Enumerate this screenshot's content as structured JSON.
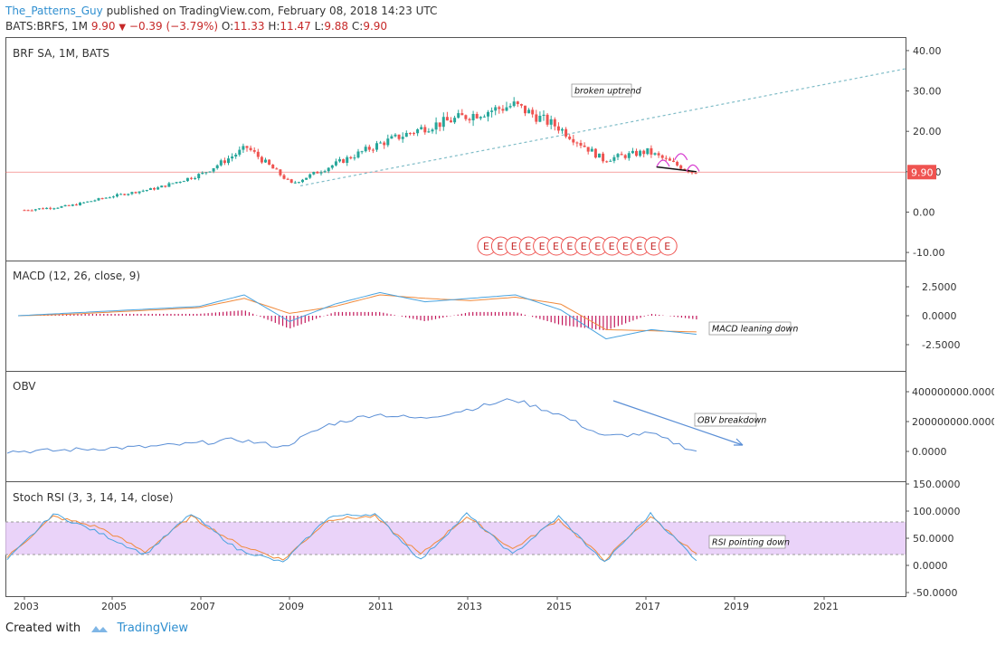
{
  "header": {
    "author": "The_Patterns_Guy",
    "published_text": "published on TradingView.com, February 08, 2018 14:23 UTC"
  },
  "ticker": {
    "symbol": "BATS:BRFS, 1M",
    "price": "9.90",
    "change": "−0.39 (−3.79%)",
    "o_label": "O:",
    "o_value": "11.33",
    "h_label": "H:",
    "h_value": "11.47",
    "l_label": "L:",
    "l_value": "9.88",
    "c_label": "C:",
    "c_value": "9.90"
  },
  "footer": {
    "created_with": "Created with",
    "brand": "TradingView"
  },
  "colors": {
    "up": "#26a69a",
    "down": "#ef5350",
    "macd": "#4aa3df",
    "signal": "#f08a3c",
    "hist": "#c2185b",
    "obv": "#5b8fd6",
    "stoch_k": "#4aa3df",
    "stoch_d": "#f08a3c",
    "band": "#e5c8f7",
    "price_line": "#ef5350",
    "trend": "#7fbcc7"
  },
  "chart_data": [
    {
      "type": "candlestick",
      "title": "BRF SA, 1M, BATS",
      "ylim": [
        -12,
        42
      ],
      "y_ticks": [
        "40.00",
        "30.00",
        "20.00",
        "10.00",
        "0.00",
        "-10.00"
      ],
      "last_price_label": "9.90",
      "annotation": "broken uptrend",
      "earnings_marker": "E",
      "earnings_count": 14,
      "x": [
        "2003",
        "2004",
        "2005",
        "2006",
        "2007",
        "2008",
        "2009",
        "2010",
        "2011",
        "2012",
        "2013",
        "2014",
        "2015",
        "2016",
        "2017",
        "2018"
      ],
      "close_approx": [
        0.5,
        1.5,
        4,
        6,
        9.5,
        16,
        7,
        12,
        17,
        21,
        24,
        26.5,
        21,
        13,
        15,
        9.9
      ]
    },
    {
      "type": "line",
      "title": "MACD (12, 26, close, 9)",
      "y_ticks": [
        "2.5000",
        "0.0000",
        "-2.5000"
      ],
      "annotation": "MACD leaning down",
      "series": [
        {
          "name": "MACD",
          "values": [
            0,
            0.2,
            0.4,
            0.6,
            0.8,
            1.8,
            -0.5,
            1.0,
            2.0,
            1.2,
            1.5,
            1.8,
            0.5,
            -2.0,
            -1.2,
            -1.6
          ]
        },
        {
          "name": "Signal",
          "values": [
            0,
            0.1,
            0.3,
            0.5,
            0.7,
            1.5,
            0.2,
            0.8,
            1.8,
            1.5,
            1.3,
            1.6,
            1.0,
            -1.2,
            -1.3,
            -1.4
          ]
        }
      ]
    },
    {
      "type": "line",
      "title": "OBV",
      "y_ticks": [
        "400000000.0000",
        "200000000.0000",
        "0.0000"
      ],
      "annotation": "OBV breakdown",
      "series": [
        {
          "name": "OBV",
          "values": [
            0,
            5000000,
            20000000,
            30000000,
            50000000,
            80000000,
            30000000,
            180000000,
            250000000,
            220000000,
            280000000,
            350000000,
            250000000,
            100000000,
            120000000,
            0
          ]
        }
      ]
    },
    {
      "type": "line",
      "title": "Stoch RSI (3, 3, 14, 14, close)",
      "y_ticks": [
        "150.0000",
        "100.0000",
        "50.0000",
        "0.0000",
        "-50.0000"
      ],
      "band": [
        20,
        80
      ],
      "annotation": "RSI pointing down",
      "series": [
        {
          "name": "K",
          "values": [
            10,
            95,
            60,
            20,
            95,
            30,
            5,
            90,
            95,
            10,
            95,
            20,
            90,
            5,
            95,
            10
          ]
        },
        {
          "name": "D",
          "values": [
            15,
            90,
            70,
            25,
            90,
            40,
            10,
            85,
            90,
            20,
            90,
            30,
            85,
            10,
            90,
            20
          ]
        }
      ]
    }
  ],
  "x_axis_labels": [
    "2003",
    "2005",
    "2007",
    "2009",
    "2011",
    "2013",
    "2015",
    "2017",
    "2019",
    "2021"
  ]
}
